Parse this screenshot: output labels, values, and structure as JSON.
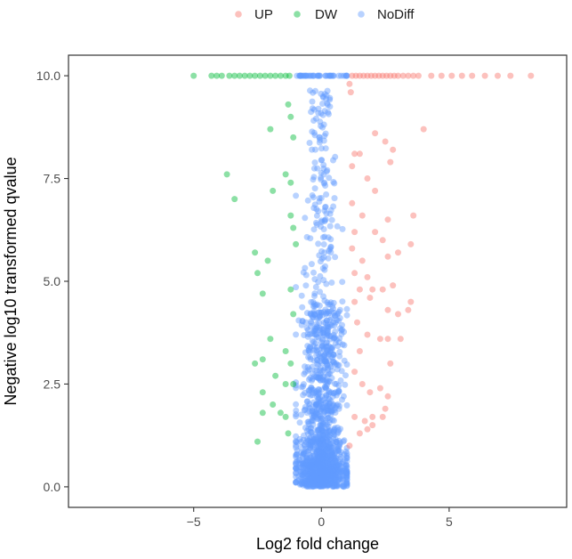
{
  "chart_data": {
    "type": "scatter",
    "title": "",
    "xlabel": "Log2 fold change",
    "ylabel": "Negative log10 transformed qvalue",
    "xlim": [
      -9.9,
      9.6
    ],
    "ylim": [
      -0.5,
      10.5
    ],
    "x_ticks": [
      -5,
      0,
      5
    ],
    "x_tick_labels": [
      "−5",
      "0",
      "5"
    ],
    "y_ticks": [
      0,
      2.5,
      5,
      7.5,
      10
    ],
    "y_tick_labels": [
      "0.0",
      "2.5",
      "5.0",
      "7.5",
      "10.0"
    ],
    "grid": false,
    "legend_position": "top",
    "point_opacity": 0.45,
    "series": [
      {
        "name": "UP",
        "color": "#F8766D",
        "points": [
          [
            1.2,
            10.0
          ],
          [
            1.35,
            10.0
          ],
          [
            1.5,
            10.0
          ],
          [
            1.65,
            10.0
          ],
          [
            1.8,
            10.0
          ],
          [
            1.95,
            10.0
          ],
          [
            2.1,
            10.0
          ],
          [
            2.25,
            10.0
          ],
          [
            2.4,
            10.0
          ],
          [
            2.55,
            10.0
          ],
          [
            2.7,
            10.0
          ],
          [
            2.85,
            10.0
          ],
          [
            3.0,
            10.0
          ],
          [
            3.2,
            10.0
          ],
          [
            3.4,
            10.0
          ],
          [
            3.6,
            10.0
          ],
          [
            3.8,
            10.0
          ],
          [
            4.3,
            10.0
          ],
          [
            4.7,
            10.0
          ],
          [
            5.1,
            10.0
          ],
          [
            5.5,
            10.0
          ],
          [
            5.9,
            10.0
          ],
          [
            6.4,
            10.0
          ],
          [
            6.9,
            10.0
          ],
          [
            7.4,
            10.0
          ],
          [
            8.2,
            10.0
          ],
          [
            1.1,
            9.8
          ],
          [
            1.15,
            9.6
          ],
          [
            4.0,
            8.7
          ],
          [
            2.1,
            8.6
          ],
          [
            2.5,
            8.4
          ],
          [
            1.3,
            8.1
          ],
          [
            1.5,
            8.1
          ],
          [
            2.8,
            8.2
          ],
          [
            2.7,
            7.9
          ],
          [
            1.2,
            7.8
          ],
          [
            1.8,
            7.5
          ],
          [
            2.1,
            7.2
          ],
          [
            1.2,
            6.9
          ],
          [
            1.6,
            6.6
          ],
          [
            2.6,
            6.5
          ],
          [
            3.6,
            6.6
          ],
          [
            1.3,
            6.2
          ],
          [
            2.1,
            6.2
          ],
          [
            2.4,
            6.0
          ],
          [
            3.5,
            5.9
          ],
          [
            1.2,
            5.8
          ],
          [
            1.6,
            5.5
          ],
          [
            2.6,
            5.6
          ],
          [
            3.0,
            5.7
          ],
          [
            1.3,
            5.2
          ],
          [
            1.8,
            5.1
          ],
          [
            1.5,
            4.8
          ],
          [
            2.0,
            4.8
          ],
          [
            2.4,
            4.8
          ],
          [
            2.8,
            4.9
          ],
          [
            1.3,
            4.5
          ],
          [
            1.9,
            4.6
          ],
          [
            2.6,
            4.3
          ],
          [
            3.0,
            4.2
          ],
          [
            3.4,
            4.3
          ],
          [
            3.5,
            4.5
          ],
          [
            1.4,
            4.0
          ],
          [
            1.8,
            3.7
          ],
          [
            2.3,
            3.6
          ],
          [
            2.6,
            3.6
          ],
          [
            3.1,
            3.6
          ],
          [
            1.5,
            3.3
          ],
          [
            2.7,
            3.0
          ],
          [
            1.3,
            2.8
          ],
          [
            1.6,
            2.5
          ],
          [
            1.9,
            2.3
          ],
          [
            2.3,
            2.4
          ],
          [
            2.6,
            2.2
          ],
          [
            2.5,
            1.9
          ],
          [
            1.3,
            1.7
          ],
          [
            1.7,
            1.6
          ],
          [
            2.0,
            1.7
          ],
          [
            2.4,
            1.7
          ],
          [
            1.5,
            1.3
          ],
          [
            1.8,
            1.4
          ],
          [
            1.1,
            1.0
          ],
          [
            2.0,
            1.5
          ]
        ]
      },
      {
        "name": "DW",
        "color": "#00BA38",
        "points": [
          [
            -5.0,
            10.0
          ],
          [
            -4.3,
            10.0
          ],
          [
            -4.1,
            10.0
          ],
          [
            -3.9,
            10.0
          ],
          [
            -3.6,
            10.0
          ],
          [
            -3.4,
            10.0
          ],
          [
            -3.2,
            10.0
          ],
          [
            -3.0,
            10.0
          ],
          [
            -2.8,
            10.0
          ],
          [
            -2.6,
            10.0
          ],
          [
            -2.4,
            10.0
          ],
          [
            -2.2,
            10.0
          ],
          [
            -2.0,
            10.0
          ],
          [
            -1.8,
            10.0
          ],
          [
            -1.6,
            10.0
          ],
          [
            -1.4,
            10.0
          ],
          [
            -1.25,
            10.0
          ],
          [
            -1.3,
            9.3
          ],
          [
            -1.2,
            9.0
          ],
          [
            -2.0,
            8.7
          ],
          [
            -1.1,
            8.5
          ],
          [
            -3.7,
            7.6
          ],
          [
            -1.4,
            7.6
          ],
          [
            -1.2,
            7.4
          ],
          [
            -1.9,
            7.2
          ],
          [
            -3.4,
            7.0
          ],
          [
            -1.2,
            6.6
          ],
          [
            -1.1,
            6.3
          ],
          [
            -1.0,
            5.9
          ],
          [
            -2.6,
            5.7
          ],
          [
            -2.1,
            5.5
          ],
          [
            -2.5,
            5.2
          ],
          [
            -2.3,
            4.7
          ],
          [
            -1.2,
            4.8
          ],
          [
            -1.1,
            4.2
          ],
          [
            -2.0,
            3.6
          ],
          [
            -1.4,
            3.3
          ],
          [
            -2.6,
            3.0
          ],
          [
            -2.3,
            3.1
          ],
          [
            -1.2,
            3.0
          ],
          [
            -1.8,
            2.7
          ],
          [
            -1.4,
            2.5
          ],
          [
            -2.3,
            2.3
          ],
          [
            -1.9,
            2.0
          ],
          [
            -1.6,
            1.8
          ],
          [
            -2.3,
            1.8
          ],
          [
            -1.4,
            1.7
          ],
          [
            -1.1,
            2.5
          ],
          [
            -2.5,
            1.1
          ],
          [
            -1.3,
            1.3
          ]
        ]
      },
      {
        "name": "NoDiff",
        "color": "#619CFF",
        "generated": true,
        "count": 1500,
        "x_spread": [
          -1.0,
          1.0
        ],
        "y_range": [
          0,
          10
        ],
        "capped_row": [
          -1.0,
          1.0
        ],
        "seed": 7
      }
    ]
  }
}
